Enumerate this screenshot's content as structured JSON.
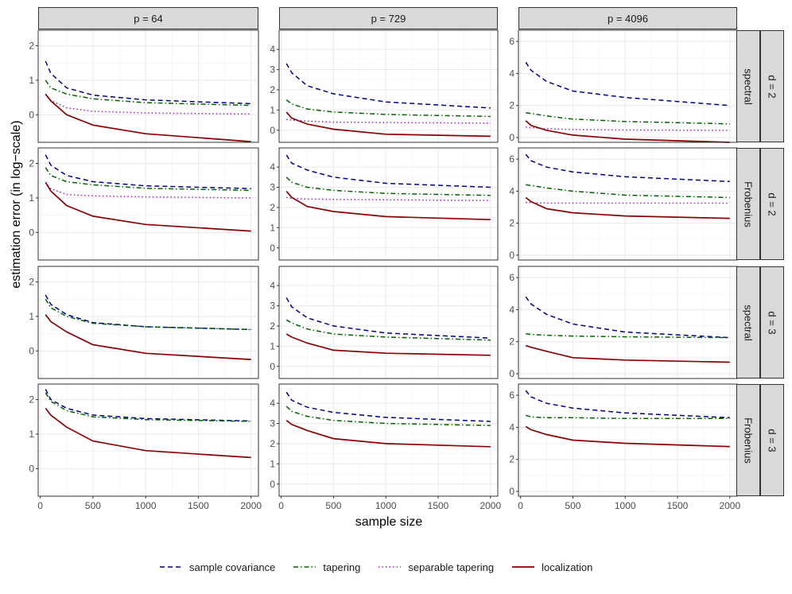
{
  "chart_data": {
    "type": "line",
    "ylabel": "estimation error (in log−scale)",
    "xlabel": "sample size",
    "x": [
      50,
      100,
      250,
      500,
      1000,
      2000
    ],
    "xlim": [
      -20,
      2070
    ],
    "xticks": [
      0,
      500,
      1000,
      1500,
      2000
    ],
    "xtick_labels": [
      "0",
      "500",
      "1000",
      "1500",
      "2000"
    ],
    "columns": [
      "p = 64",
      "p = 729",
      "p = 4096"
    ],
    "rows": [
      {
        "norm": "spectral",
        "d": "d = 2"
      },
      {
        "norm": "Frobenius",
        "d": "d = 2"
      },
      {
        "norm": "spectral",
        "d": "d = 3"
      },
      {
        "norm": "Frobenius",
        "d": "d = 3"
      }
    ],
    "col_yaxes": [
      {
        "ylim": [
          -0.8,
          2.45
        ],
        "ticks": [
          "0",
          "1",
          "2"
        ]
      },
      {
        "ylim": [
          -0.6,
          4.95
        ],
        "ticks": [
          "0",
          "1",
          "2",
          "3",
          "4"
        ]
      },
      {
        "ylim": [
          -0.3,
          6.7
        ],
        "ticks": [
          "0",
          "2",
          "4",
          "6"
        ]
      }
    ],
    "series_styles": [
      {
        "name": "sample covariance",
        "color": "#00008B",
        "dash": "6,4"
      },
      {
        "name": "tapering",
        "color": "#006400",
        "dash": "6,3,1.5,3"
      },
      {
        "name": "separable tapering",
        "color": "#A020C0",
        "dash": "1.5,3"
      },
      {
        "name": "localization",
        "color": "#8B0000",
        "dash": ""
      }
    ],
    "panels": [
      {
        "row": 0,
        "col": 0,
        "series": {
          "sample covariance": [
            1.55,
            1.2,
            0.78,
            0.57,
            0.43,
            0.32
          ],
          "tapering": [
            1.0,
            0.78,
            0.6,
            0.46,
            0.35,
            0.27
          ],
          "separable tapering": [
            0.6,
            0.42,
            0.2,
            0.1,
            0.05,
            0.02
          ],
          "localization": [
            0.6,
            0.4,
            0.0,
            -0.3,
            -0.55,
            -0.78
          ]
        }
      },
      {
        "row": 0,
        "col": 1,
        "series": {
          "sample covariance": [
            3.3,
            2.85,
            2.2,
            1.8,
            1.4,
            1.1
          ],
          "tapering": [
            1.5,
            1.3,
            1.05,
            0.9,
            0.78,
            0.68
          ],
          "separable tapering": [
            0.55,
            0.5,
            0.45,
            0.4,
            0.38,
            0.35
          ],
          "localization": [
            0.9,
            0.6,
            0.3,
            0.05,
            -0.2,
            -0.3
          ]
        }
      },
      {
        "row": 0,
        "col": 2,
        "series": {
          "sample covariance": [
            4.7,
            4.2,
            3.5,
            2.9,
            2.5,
            2.0
          ],
          "tapering": [
            1.55,
            1.5,
            1.35,
            1.15,
            1.0,
            0.85
          ],
          "separable tapering": [
            0.65,
            0.62,
            0.55,
            0.5,
            0.47,
            0.45
          ],
          "localization": [
            1.05,
            0.75,
            0.45,
            0.15,
            -0.1,
            -0.3
          ]
        }
      },
      {
        "row": 1,
        "col": 0,
        "series": {
          "sample covariance": [
            2.25,
            1.95,
            1.65,
            1.47,
            1.35,
            1.27
          ],
          "tapering": [
            1.88,
            1.65,
            1.47,
            1.38,
            1.28,
            1.22
          ],
          "separable tapering": [
            1.45,
            1.27,
            1.1,
            1.06,
            1.03,
            1.0
          ],
          "localization": [
            1.45,
            1.2,
            0.78,
            0.47,
            0.23,
            0.04
          ]
        }
      },
      {
        "row": 1,
        "col": 1,
        "series": {
          "sample covariance": [
            4.6,
            4.2,
            3.85,
            3.5,
            3.2,
            3.0
          ],
          "tapering": [
            3.5,
            3.25,
            3.0,
            2.85,
            2.7,
            2.6
          ],
          "separable tapering": [
            2.5,
            2.45,
            2.42,
            2.4,
            2.38,
            2.35
          ],
          "localization": [
            2.8,
            2.5,
            2.05,
            1.8,
            1.55,
            1.4
          ]
        }
      },
      {
        "row": 1,
        "col": 2,
        "series": {
          "sample covariance": [
            6.3,
            5.9,
            5.5,
            5.2,
            4.9,
            4.6
          ],
          "tapering": [
            4.4,
            4.35,
            4.2,
            4.0,
            3.75,
            3.6
          ],
          "separable tapering": [
            3.3,
            3.28,
            3.25,
            3.25,
            3.25,
            3.25
          ],
          "localization": [
            3.6,
            3.35,
            2.9,
            2.65,
            2.45,
            2.3
          ]
        }
      },
      {
        "row": 2,
        "col": 0,
        "series": {
          "sample covariance": [
            1.62,
            1.35,
            1.05,
            0.82,
            0.7,
            0.62
          ],
          "tapering": [
            1.5,
            1.25,
            1.0,
            0.8,
            0.7,
            0.62
          ],
          "localization": [
            1.05,
            0.85,
            0.55,
            0.18,
            -0.07,
            -0.25
          ]
        }
      },
      {
        "row": 2,
        "col": 1,
        "series": {
          "sample covariance": [
            3.4,
            2.95,
            2.4,
            2.0,
            1.65,
            1.4
          ],
          "tapering": [
            2.3,
            2.15,
            1.85,
            1.6,
            1.45,
            1.3
          ],
          "localization": [
            1.6,
            1.45,
            1.15,
            0.8,
            0.65,
            0.55
          ]
        }
      },
      {
        "row": 2,
        "col": 2,
        "series": {
          "sample covariance": [
            4.8,
            4.35,
            3.7,
            3.1,
            2.6,
            2.25
          ],
          "tapering": [
            2.5,
            2.45,
            2.4,
            2.35,
            2.3,
            2.25
          ],
          "localization": [
            1.75,
            1.65,
            1.4,
            1.0,
            0.85,
            0.72
          ]
        }
      },
      {
        "row": 3,
        "col": 0,
        "series": {
          "sample covariance": [
            2.3,
            2.0,
            1.75,
            1.55,
            1.45,
            1.38
          ],
          "tapering": [
            2.2,
            1.95,
            1.68,
            1.5,
            1.42,
            1.37
          ],
          "localization": [
            1.75,
            1.55,
            1.2,
            0.8,
            0.52,
            0.32
          ]
        }
      },
      {
        "row": 3,
        "col": 1,
        "series": {
          "sample covariance": [
            4.55,
            4.15,
            3.8,
            3.55,
            3.3,
            3.1
          ],
          "tapering": [
            3.85,
            3.6,
            3.35,
            3.15,
            3.0,
            2.9
          ],
          "localization": [
            3.15,
            2.95,
            2.65,
            2.25,
            2.0,
            1.85
          ]
        }
      },
      {
        "row": 3,
        "col": 2,
        "series": {
          "sample covariance": [
            6.3,
            5.9,
            5.5,
            5.2,
            4.9,
            4.6
          ],
          "tapering": [
            4.75,
            4.65,
            4.6,
            4.6,
            4.55,
            4.55
          ],
          "localization": [
            4.05,
            3.85,
            3.55,
            3.2,
            3.0,
            2.8
          ]
        }
      }
    ],
    "legend": {
      "position": "bottom",
      "entries": [
        {
          "label": "sample covariance",
          "color": "#00008B"
        },
        {
          "label": "tapering",
          "color": "#006400"
        },
        {
          "label": "separable tapering",
          "color": "#A020C0"
        },
        {
          "label": "localization",
          "color": "#8B0000"
        }
      ]
    }
  }
}
